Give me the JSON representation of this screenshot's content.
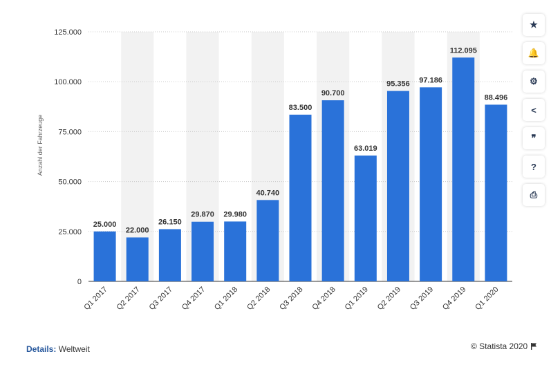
{
  "chart_data": {
    "type": "bar",
    "categories": [
      "Q1 2017",
      "Q2 2017",
      "Q3 2017",
      "Q4 2017",
      "Q1 2018",
      "Q2 2018",
      "Q3 2018",
      "Q4 2018",
      "Q1 2019",
      "Q2 2019",
      "Q3 2019",
      "Q4 2019",
      "Q1 2020"
    ],
    "values": [
      25000,
      22000,
      26150,
      29870,
      29980,
      40740,
      83500,
      90700,
      63019,
      95356,
      97186,
      112095,
      88496
    ],
    "value_labels": [
      "25.000",
      "22.000",
      "26.150",
      "29.870",
      "29.980",
      "40.740",
      "83.500",
      "90.700",
      "63.019",
      "95.356",
      "97.186",
      "112.095",
      "88.496"
    ],
    "ylabel": "Anzahl der Fahrzeuge",
    "xlabel": "",
    "ylim": [
      0,
      125000
    ],
    "yticks": [
      0,
      25000,
      50000,
      75000,
      100000,
      125000
    ],
    "ytick_labels": [
      "0",
      "25.000",
      "50.000",
      "75.000",
      "100.000",
      "125.000"
    ],
    "bar_color": "#2a72d9",
    "band_color": "#f2f2f2",
    "grid": true
  },
  "sidebar": [
    {
      "name": "favorite-star-icon",
      "glyph": "★"
    },
    {
      "name": "notification-bell-icon",
      "glyph": "🔔"
    },
    {
      "name": "settings-gear-icon",
      "glyph": "⚙"
    },
    {
      "name": "share-icon",
      "glyph": "<"
    },
    {
      "name": "citation-quote-icon",
      "glyph": "❞"
    },
    {
      "name": "help-question-icon",
      "glyph": "?"
    },
    {
      "name": "print-icon",
      "glyph": "⎙"
    }
  ],
  "footer": {
    "details_label": "Details:",
    "details_value": "Weltweit",
    "copyright": "© Statista 2020"
  }
}
